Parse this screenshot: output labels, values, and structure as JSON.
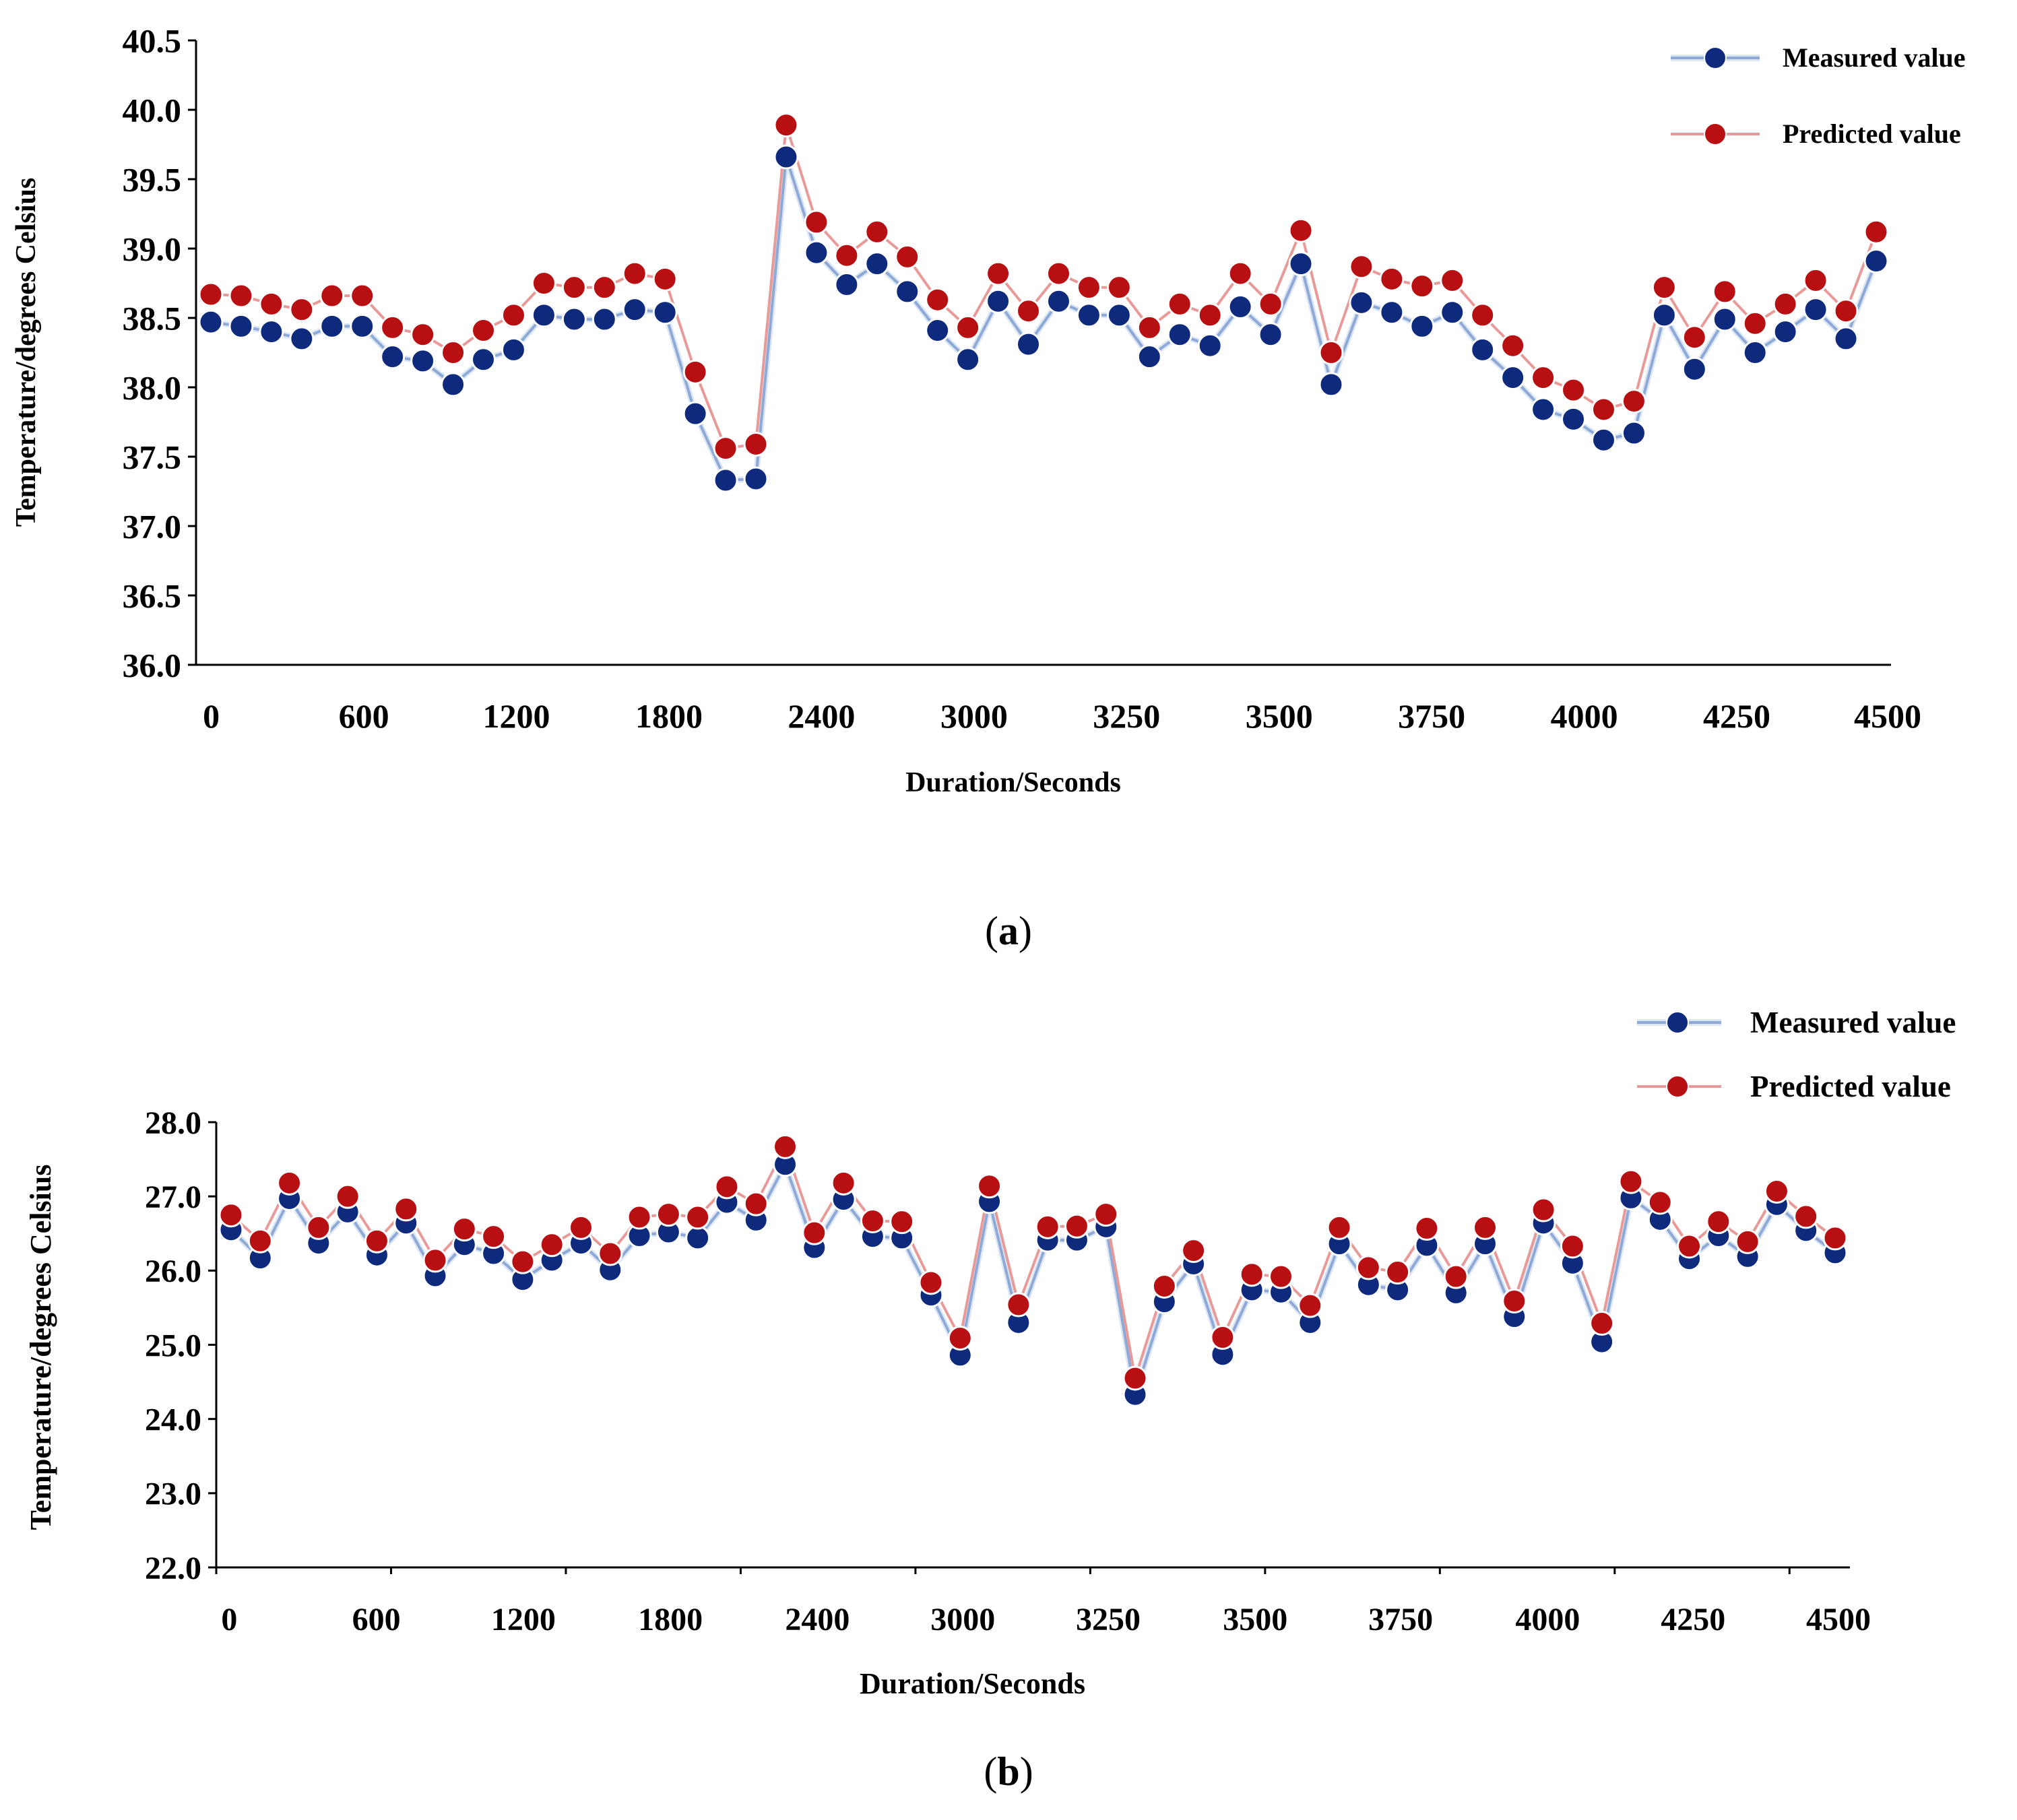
{
  "chart_data": [
    {
      "panel": "a",
      "type": "line",
      "panel_label_open": "(",
      "panel_label_letter": "a",
      "panel_label_close": ")",
      "xlabel": "Duration/Seconds",
      "ylabel": "Temperature/degrees Celsius",
      "ylim": [
        36.0,
        40.5
      ],
      "yticks": [
        "36.0",
        "36.5",
        "37.0",
        "37.5",
        "38.0",
        "38.5",
        "39.0",
        "39.5",
        "40.0",
        "40.5"
      ],
      "xtick_labels": [
        "0",
        "600",
        "1200",
        "1800",
        "2400",
        "3000",
        "3250",
        "3500",
        "3750",
        "4000",
        "4250",
        "4500"
      ],
      "legend_position": "top-right",
      "series": [
        {
          "name": "Measured value",
          "color": "#0d2a7c",
          "line_color": "#8ea9d6",
          "values": [
            38.47,
            38.44,
            38.4,
            38.35,
            38.44,
            38.44,
            38.22,
            38.19,
            38.02,
            38.2,
            38.27,
            38.52,
            38.49,
            38.49,
            38.56,
            38.54,
            37.81,
            37.33,
            37.34,
            39.66,
            38.97,
            38.74,
            38.89,
            38.69,
            38.41,
            38.2,
            38.62,
            38.31,
            38.62,
            38.52,
            38.52,
            38.22,
            38.38,
            38.3,
            38.58,
            38.38,
            38.89,
            38.02,
            38.61,
            38.54,
            38.44,
            38.54,
            38.27,
            38.07,
            37.84,
            37.77,
            37.62,
            37.67,
            38.52,
            38.13,
            38.49,
            38.25,
            38.4,
            38.56,
            38.35,
            38.91
          ]
        },
        {
          "name": "Predicted value",
          "color": "#b80f12",
          "line_color": "#e79a97",
          "values": [
            38.67,
            38.66,
            38.6,
            38.56,
            38.66,
            38.66,
            38.43,
            38.38,
            38.25,
            38.41,
            38.52,
            38.75,
            38.72,
            38.72,
            38.82,
            38.78,
            38.11,
            37.56,
            37.59,
            39.89,
            39.19,
            38.95,
            39.12,
            38.94,
            38.63,
            38.43,
            38.82,
            38.55,
            38.82,
            38.72,
            38.72,
            38.43,
            38.6,
            38.52,
            38.82,
            38.6,
            39.13,
            38.25,
            38.87,
            38.78,
            38.73,
            38.77,
            38.52,
            38.3,
            38.07,
            37.98,
            37.84,
            37.9,
            38.72,
            38.36,
            38.69,
            38.46,
            38.6,
            38.77,
            38.55,
            39.12
          ]
        }
      ]
    },
    {
      "panel": "b",
      "type": "line",
      "panel_label_open": "(",
      "panel_label_letter": "b",
      "panel_label_close": ")",
      "xlabel": "Duration/Seconds",
      "ylabel": "Temperature/degrees Celsius",
      "ylim": [
        22.0,
        28.0
      ],
      "yticks": [
        "22.0",
        "23.0",
        "24.0",
        "25.0",
        "26.0",
        "27.0",
        "28.0"
      ],
      "xtick_labels": [
        "0",
        "600",
        "1200",
        "1800",
        "2400",
        "3000",
        "3250",
        "3500",
        "3750",
        "4000",
        "4250",
        "4500"
      ],
      "legend_position": "top-right",
      "series": [
        {
          "name": "Measured value",
          "color": "#0d2a7c",
          "line_color": "#8ea9d6",
          "values": [
            26.55,
            26.17,
            26.97,
            26.37,
            26.79,
            26.21,
            26.64,
            25.93,
            26.35,
            26.23,
            25.88,
            26.14,
            26.37,
            26.01,
            26.47,
            26.52,
            26.44,
            26.92,
            26.68,
            27.43,
            26.31,
            26.96,
            26.46,
            26.44,
            25.67,
            24.86,
            26.93,
            25.3,
            26.41,
            26.41,
            26.59,
            24.33,
            25.58,
            26.09,
            24.87,
            25.74,
            25.71,
            25.3,
            26.36,
            25.81,
            25.74,
            26.34,
            25.7,
            26.36,
            25.38,
            26.64,
            26.1,
            25.04,
            26.98,
            26.69,
            26.16,
            26.47,
            26.19,
            26.89,
            26.54,
            26.24
          ]
        },
        {
          "name": "Predicted value",
          "color": "#b80f12",
          "line_color": "#e79a97",
          "values": [
            26.75,
            26.4,
            27.18,
            26.58,
            27.0,
            26.4,
            26.83,
            26.14,
            26.56,
            26.46,
            26.12,
            26.35,
            26.58,
            26.23,
            26.72,
            26.76,
            26.72,
            27.13,
            26.9,
            27.67,
            26.51,
            27.18,
            26.67,
            26.66,
            25.84,
            25.09,
            27.14,
            25.54,
            26.59,
            26.6,
            26.76,
            24.55,
            25.79,
            26.27,
            25.1,
            25.95,
            25.92,
            25.53,
            26.58,
            26.04,
            25.98,
            26.57,
            25.92,
            26.58,
            25.59,
            26.82,
            26.33,
            25.29,
            27.2,
            26.92,
            26.33,
            26.66,
            26.39,
            27.07,
            26.73,
            26.44
          ]
        }
      ]
    }
  ]
}
